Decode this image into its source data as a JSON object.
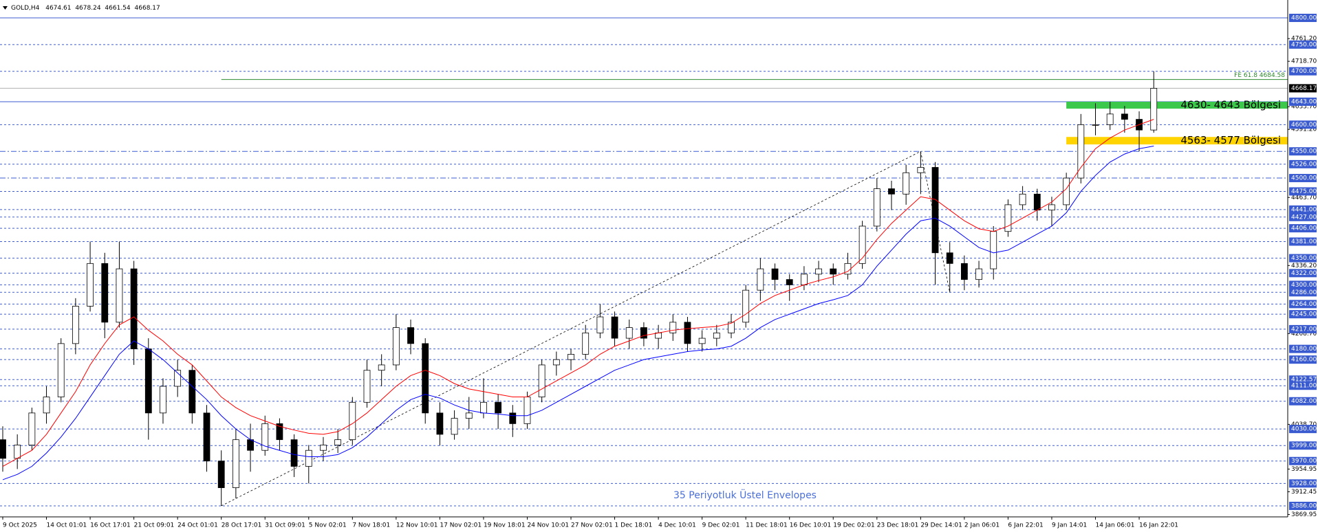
{
  "chart_data": {
    "type": "candlestick",
    "header": {
      "symbol": "GOLD,H4",
      "ohlc": [
        4674.61,
        4678.24,
        4661.54,
        4668.17
      ]
    },
    "annotation": "35 Periyotluk Üstel Envelopes",
    "categories": [
      "9 Oct 2025",
      null,
      null,
      "14 Oct 01:01",
      null,
      null,
      "16 Oct 17:01",
      null,
      null,
      "21 Oct 09:01",
      null,
      null,
      "24 Oct 01:01",
      null,
      null,
      "28 Oct 17:01",
      null,
      null,
      "31 Oct 09:01",
      null,
      null,
      "5 Nov 02:01",
      null,
      null,
      "7 Nov 18:01",
      null,
      null,
      "12 Nov 10:01",
      null,
      null,
      "17 Nov 02:01",
      null,
      null,
      "19 Nov 18:01",
      null,
      null,
      "24 Nov 10:01",
      null,
      null,
      "27 Nov 02:01",
      null,
      null,
      "1 Dec 18:01",
      null,
      null,
      "4 Dec 10:01",
      null,
      null,
      "9 Dec 02:01",
      null,
      null,
      "11 Dec 18:01",
      null,
      null,
      "16 Dec 10:01",
      null,
      null,
      "19 Dec 02:01",
      null,
      null,
      "23 Dec 18:01",
      null,
      null,
      "29 Dec 14:01",
      null,
      null,
      "2 Jan 06:01",
      null,
      null,
      "6 Jan 22:01",
      null,
      null,
      "9 Jan 14:01",
      null,
      null,
      "14 Jan 06:01",
      null,
      null,
      "16 Jan 22:01",
      null
    ],
    "candles": [
      [
        4010,
        4035,
        3950,
        3975
      ],
      [
        3975,
        4020,
        3955,
        4000
      ],
      [
        4000,
        4070,
        3990,
        4060
      ],
      [
        4060,
        4110,
        4040,
        4090
      ],
      [
        4090,
        4200,
        4080,
        4190
      ],
      [
        4190,
        4275,
        4170,
        4260
      ],
      [
        4260,
        4381,
        4250,
        4340
      ],
      [
        4340,
        4360,
        4200,
        4230
      ],
      [
        4230,
        4381,
        4220,
        4330
      ],
      [
        4330,
        4345,
        4150,
        4180
      ],
      [
        4180,
        4200,
        4010,
        4060
      ],
      [
        4060,
        4125,
        4040,
        4110
      ],
      [
        4110,
        4160,
        4090,
        4140
      ],
      [
        4140,
        4150,
        4040,
        4060
      ],
      [
        4060,
        4075,
        3950,
        3970
      ],
      [
        3970,
        3990,
        3886,
        3920
      ],
      [
        3920,
        4030,
        3900,
        4010
      ],
      [
        4010,
        4040,
        3950,
        3990
      ],
      [
        3990,
        4055,
        3980,
        4040
      ],
      [
        4040,
        4050,
        3990,
        4010
      ],
      [
        4010,
        4020,
        3940,
        3960
      ],
      [
        3960,
        4000,
        3928,
        3990
      ],
      [
        3990,
        4015,
        3970,
        4000
      ],
      [
        4000,
        4030,
        3985,
        4010
      ],
      [
        4010,
        4090,
        4000,
        4080
      ],
      [
        4080,
        4160,
        4070,
        4140
      ],
      [
        4140,
        4170,
        4110,
        4150
      ],
      [
        4150,
        4245,
        4140,
        4220
      ],
      [
        4220,
        4235,
        4170,
        4190
      ],
      [
        4190,
        4200,
        4040,
        4060
      ],
      [
        4060,
        4080,
        3999,
        4020
      ],
      [
        4020,
        4065,
        4010,
        4050
      ],
      [
        4050,
        4090,
        4030,
        4060
      ],
      [
        4060,
        4125,
        4050,
        4080
      ],
      [
        4080,
        4095,
        4030,
        4060
      ],
      [
        4060,
        4075,
        4015,
        4040
      ],
      [
        4040,
        4100,
        4030,
        4090
      ],
      [
        4090,
        4160,
        4080,
        4150
      ],
      [
        4150,
        4175,
        4130,
        4160
      ],
      [
        4160,
        4180,
        4140,
        4170
      ],
      [
        4170,
        4225,
        4160,
        4210
      ],
      [
        4210,
        4264,
        4200,
        4240
      ],
      [
        4240,
        4250,
        4185,
        4200
      ],
      [
        4200,
        4235,
        4180,
        4220
      ],
      [
        4220,
        4230,
        4185,
        4200
      ],
      [
        4200,
        4225,
        4180,
        4210
      ],
      [
        4210,
        4245,
        4195,
        4230
      ],
      [
        4230,
        4240,
        4175,
        4190
      ],
      [
        4190,
        4215,
        4175,
        4200
      ],
      [
        4200,
        4225,
        4185,
        4210
      ],
      [
        4210,
        4245,
        4200,
        4230
      ],
      [
        4230,
        4300,
        4220,
        4290
      ],
      [
        4290,
        4350,
        4270,
        4330
      ],
      [
        4330,
        4340,
        4290,
        4310
      ],
      [
        4310,
        4320,
        4270,
        4300
      ],
      [
        4300,
        4335,
        4290,
        4320
      ],
      [
        4320,
        4345,
        4305,
        4330
      ],
      [
        4330,
        4340,
        4300,
        4320
      ],
      [
        4320,
        4360,
        4310,
        4340
      ],
      [
        4340,
        4420,
        4330,
        4410
      ],
      [
        4410,
        4500,
        4400,
        4480
      ],
      [
        4480,
        4495,
        4440,
        4470
      ],
      [
        4470,
        4525,
        4450,
        4510
      ],
      [
        4510,
        4550,
        4470,
        4520
      ],
      [
        4520,
        4530,
        4300,
        4360
      ],
      [
        4360,
        4380,
        4286,
        4340
      ],
      [
        4340,
        4355,
        4290,
        4310
      ],
      [
        4310,
        4345,
        4295,
        4330
      ],
      [
        4330,
        4410,
        4310,
        4400
      ],
      [
        4400,
        4460,
        4390,
        4450
      ],
      [
        4450,
        4485,
        4440,
        4470
      ],
      [
        4470,
        4480,
        4420,
        4440
      ],
      [
        4440,
        4465,
        4410,
        4450
      ],
      [
        4450,
        4510,
        4440,
        4500
      ],
      [
        4500,
        4620,
        4490,
        4600
      ],
      [
        4600,
        4640,
        4580,
        4600
      ],
      [
        4600,
        4643,
        4590,
        4620
      ],
      [
        4620,
        4635,
        4585,
        4610
      ],
      [
        4610,
        4625,
        4550,
        4590
      ],
      [
        4590,
        4700,
        4585,
        4668.17
      ]
    ],
    "up_color": "#ffffff",
    "down_color": "#000000",
    "series": [
      {
        "color": "#ff0000",
        "values": [
          3960,
          3975,
          3990,
          4020,
          4060,
          4100,
          4150,
          4190,
          4225,
          4240,
          4215,
          4195,
          4170,
          4150,
          4120,
          4090,
          4070,
          4055,
          4045,
          4035,
          4028,
          4022,
          4020,
          4025,
          4040,
          4060,
          4085,
          4110,
          4130,
          4140,
          4130,
          4115,
          4105,
          4100,
          4095,
          4090,
          4090,
          4105,
          4120,
          4135,
          4150,
          4170,
          4185,
          4195,
          4205,
          4210,
          4215,
          4218,
          4220,
          4222,
          4228,
          4245,
          4265,
          4280,
          4290,
          4300,
          4308,
          4315,
          4325,
          4350,
          4385,
          4415,
          4440,
          4465,
          4460,
          4440,
          4420,
          4405,
          4400,
          4410,
          4425,
          4440,
          4455,
          4480,
          4520,
          4555,
          4575,
          4590,
          4600,
          4610
        ]
      },
      {
        "color": "#0000ff",
        "values": [
          3935,
          3945,
          3960,
          3985,
          4015,
          4050,
          4090,
          4130,
          4170,
          4195,
          4180,
          4160,
          4135,
          4110,
          4085,
          4055,
          4030,
          4010,
          3998,
          3990,
          3982,
          3978,
          3978,
          3982,
          3995,
          4015,
          4040,
          4065,
          4085,
          4095,
          4088,
          4075,
          4065,
          4060,
          4058,
          4055,
          4055,
          4065,
          4080,
          4095,
          4110,
          4125,
          4140,
          4150,
          4160,
          4165,
          4170,
          4175,
          4178,
          4180,
          4185,
          4200,
          4220,
          4235,
          4245,
          4255,
          4265,
          4272,
          4280,
          4300,
          4335,
          4365,
          4395,
          4420,
          4425,
          4410,
          4390,
          4370,
          4360,
          4365,
          4380,
          4395,
          4410,
          4435,
          4475,
          4505,
          4530,
          4545,
          4555,
          4560
        ]
      }
    ],
    "ylim": [
      3865.4,
      4833.5
    ],
    "yticks": [
      {
        "value": 4761.2,
        "label": "4761.20"
      },
      {
        "value": 4718.7,
        "label": "4718.70"
      },
      {
        "value": 4633.7,
        "label": "4633.70"
      },
      {
        "value": 4591.2,
        "label": "4591.20"
      },
      {
        "value": 4463.7,
        "label": "4463.70"
      },
      {
        "value": 4336.2,
        "label": "4336.20"
      },
      {
        "value": 4208.7,
        "label": "4208.70"
      },
      {
        "value": 4038.7,
        "label": "4038.70"
      },
      3954.95,
      3912.45,
      3869.95
    ],
    "level_color": "#3a5bd0",
    "levels": [
      {
        "value": 4800,
        "label": "4800.00",
        "style": "solid"
      },
      {
        "value": 4750,
        "label": "4750.00"
      },
      {
        "value": 4700,
        "label": "4700.00"
      },
      {
        "value": 4643,
        "label": "4643.00",
        "style": "solid"
      },
      {
        "value": 4600,
        "label": "4600.00"
      },
      {
        "value": 4550,
        "label": "4550.00",
        "style": "dashdot"
      },
      {
        "value": 4526,
        "label": "4526.00"
      },
      {
        "value": 4500,
        "label": "4500.00",
        "style": "dashdot"
      },
      {
        "value": 4475,
        "label": "4475.00"
      },
      {
        "value": 4441,
        "label": "4441.00"
      },
      {
        "value": 4427,
        "label": "4427.00"
      },
      {
        "value": 4406,
        "label": "4406.00"
      },
      {
        "value": 4381,
        "label": "4381.00"
      },
      {
        "value": 4350,
        "label": "4350.00"
      },
      {
        "value": 4322,
        "label": "4322.00"
      },
      {
        "value": 4300,
        "label": "4300.00"
      },
      {
        "value": 4286,
        "label": "4286.00"
      },
      {
        "value": 4264,
        "label": "4264.00"
      },
      {
        "value": 4245,
        "label": "4245.00"
      },
      {
        "value": 4217,
        "label": "4217.00"
      },
      {
        "value": 4180,
        "label": "4180.00"
      },
      {
        "value": 4160,
        "label": "4160.00"
      },
      {
        "value": 4122.57,
        "label": "4122.57"
      },
      {
        "value": 4111,
        "label": "4111.00"
      },
      {
        "value": 4082,
        "label": "4082.00"
      },
      {
        "value": 4030,
        "label": "4030.00"
      },
      {
        "value": 3999,
        "label": "3999.00"
      },
      {
        "value": 3970,
        "label": "3970.00"
      },
      {
        "value": 3928,
        "label": "3928.00"
      },
      {
        "value": 3886,
        "label": "3886.00"
      }
    ],
    "zones": [
      {
        "low": 4630,
        "high": 4643,
        "x_start": 73,
        "color": "#3cc84a",
        "label": "4630- 4643 Bölgesi"
      },
      {
        "low": 4563,
        "high": 4577,
        "x_start": 73,
        "color": "#ffd400",
        "label": "4563- 4577 Bölgesi"
      }
    ],
    "fe_line": {
      "value": 4684.58,
      "x_start": 15,
      "color": "#2e8b2e",
      "label": "FE 61.8 4684.58"
    },
    "last_price": 4668.17,
    "trendlines": [
      {
        "x": [
          15,
          63
        ],
        "y": [
          3886,
          4550
        ]
      },
      {
        "x": [
          63,
          65
        ],
        "y": [
          4550,
          4286
        ]
      }
    ]
  }
}
